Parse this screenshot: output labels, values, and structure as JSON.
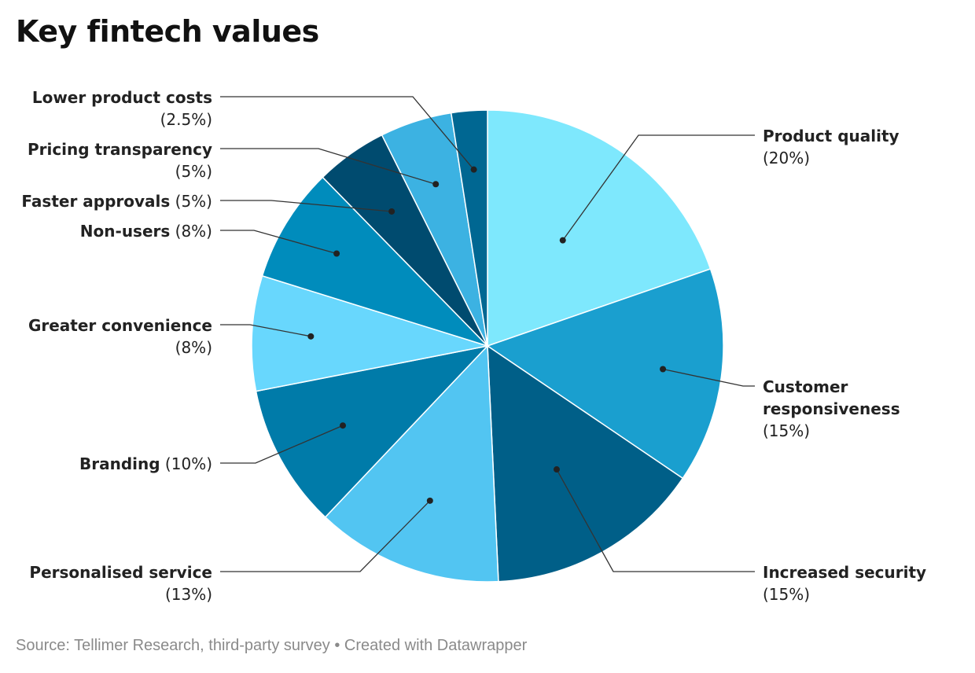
{
  "title": "Key fintech values",
  "footer": {
    "source": "Source: Tellimer Research, third-party survey",
    "separator": "•",
    "credit": "Created with Datawrapper"
  },
  "chart_data": {
    "type": "pie",
    "title": "Key fintech values",
    "slices": [
      {
        "label": "Product quality",
        "value_label": "(20%)",
        "value": 20,
        "color": "#7ee8fd"
      },
      {
        "label": "Customer responsiveness",
        "value_label": "(15%)",
        "value": 15,
        "color": "#1a9fcf"
      },
      {
        "label": "Increased security",
        "value_label": "(15%)",
        "value": 15,
        "color": "#005f88"
      },
      {
        "label": "Personalised service",
        "value_label": "(13%)",
        "value": 13,
        "color": "#52c5f2"
      },
      {
        "label": "Branding",
        "value_label": "(10%)",
        "value": 10,
        "color": "#007ba9"
      },
      {
        "label": "Greater convenience",
        "value_label": "(8%)",
        "value": 8,
        "color": "#68d7fd"
      },
      {
        "label": "Non-users",
        "value_label": "(8%)",
        "value": 8,
        "color": "#008cbc"
      },
      {
        "label": "Faster approvals",
        "value_label": "(5%)",
        "value": 5,
        "color": "#004b6f"
      },
      {
        "label": "Pricing transparency",
        "value_label": "(5%)",
        "value": 5,
        "color": "#3cb2e2"
      },
      {
        "label": "Lower product costs",
        "value_label": "(2.5%)",
        "value": 2.5,
        "color": "#006792"
      }
    ]
  }
}
